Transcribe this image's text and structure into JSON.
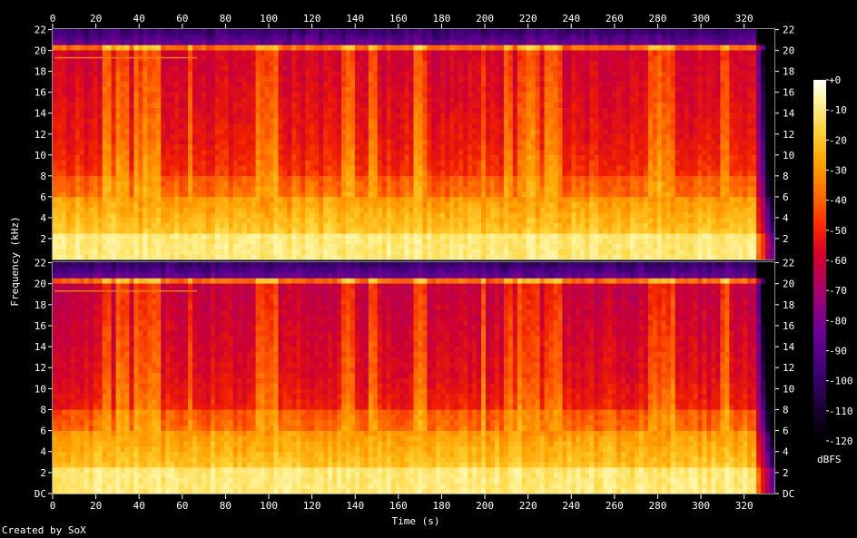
{
  "chart_data": {
    "type": "heatmap",
    "subtype": "spectrogram",
    "title": "",
    "xlabel": "Time (s)",
    "ylabel": "Frequency (kHz)",
    "x_ticks": [
      0,
      20,
      40,
      60,
      80,
      100,
      120,
      140,
      160,
      180,
      200,
      220,
      240,
      260,
      280,
      300,
      320
    ],
    "xlim": [
      0,
      334
    ],
    "y_ticks": [
      "DC",
      "2",
      "4",
      "6",
      "8",
      "10",
      "12",
      "14",
      "16",
      "18",
      "20",
      "22"
    ],
    "ylim": [
      0,
      22.05
    ],
    "channels": [
      "left",
      "right"
    ],
    "colorbar": {
      "label": "dBFS",
      "ticks": [
        "+0",
        "-10",
        "-20",
        "-30",
        "-40",
        "-50",
        "-60",
        "-70",
        "-80",
        "-90",
        "-100",
        "-110",
        "-120"
      ],
      "range": [
        -120,
        0
      ]
    },
    "grid": false,
    "credit": "Created by SoX"
  },
  "colors": {
    "background": "#000000",
    "text": "#ffffff",
    "palette": [
      "#000000",
      "#1a0033",
      "#3a0070",
      "#6a009a",
      "#a8006a",
      "#d80028",
      "#ff2a00",
      "#ff6a00",
      "#ffa300",
      "#ffd23a",
      "#fff7a8",
      "#ffffff"
    ]
  }
}
